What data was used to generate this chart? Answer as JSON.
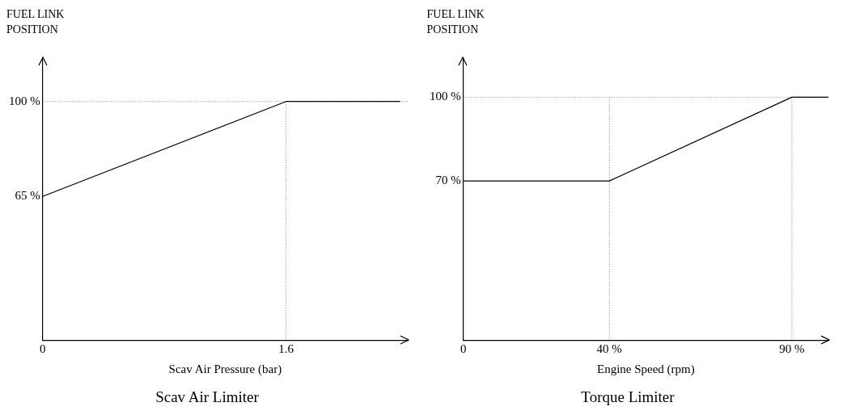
{
  "chart_data": [
    {
      "type": "line",
      "title": "Scav Air Limiter",
      "xlabel": "Scav Air Pressure (bar)",
      "ylabel": "FUEL LINK POSITION",
      "xlim": [
        0,
        2.4
      ],
      "ylim": [
        12,
        116
      ],
      "xticks": [
        0,
        1.6
      ],
      "yticks": [
        {
          "value": 65,
          "label": "65 %"
        },
        {
          "value": 100,
          "label": "100 %"
        }
      ],
      "grid": false,
      "line_style": "solid",
      "series": [
        {
          "color": "#000000",
          "x": [
            0,
            1.6,
            2.35
          ],
          "values": [
            65,
            100,
            100
          ]
        }
      ],
      "ref_lines": [
        {
          "axis": "y",
          "value": 100,
          "color": "#808080",
          "line_style": "dotted"
        },
        {
          "axis": "x",
          "value": 1.6,
          "color": "#808080",
          "line_style": "dotted"
        }
      ]
    },
    {
      "type": "line",
      "title": "Torque Limiter",
      "xlabel": "Engine Speed (rpm)",
      "ylabel": "FUEL LINK POSITION",
      "xlim": [
        0,
        100
      ],
      "ylim": [
        13,
        114
      ],
      "xticks": [
        {
          "value": 0,
          "label": "0"
        },
        {
          "value": 40,
          "label": "40 %"
        },
        {
          "value": 90,
          "label": "90 %"
        }
      ],
      "yticks": [
        {
          "value": 70,
          "label": "70 %"
        },
        {
          "value": 100,
          "label": "100 %"
        }
      ],
      "grid": false,
      "line_style": "solid",
      "series": [
        {
          "color": "#000000",
          "x": [
            0,
            40,
            90,
            100
          ],
          "values": [
            70,
            70,
            100,
            100
          ]
        }
      ],
      "ref_lines": [
        {
          "axis": "y",
          "value": 100,
          "color": "#808080",
          "line_style": "dotted"
        },
        {
          "axis": "x",
          "value": 40,
          "color": "#808080",
          "line_style": "dotted"
        },
        {
          "axis": "x",
          "value": 90,
          "color": "#808080",
          "line_style": "dotted"
        }
      ]
    }
  ]
}
